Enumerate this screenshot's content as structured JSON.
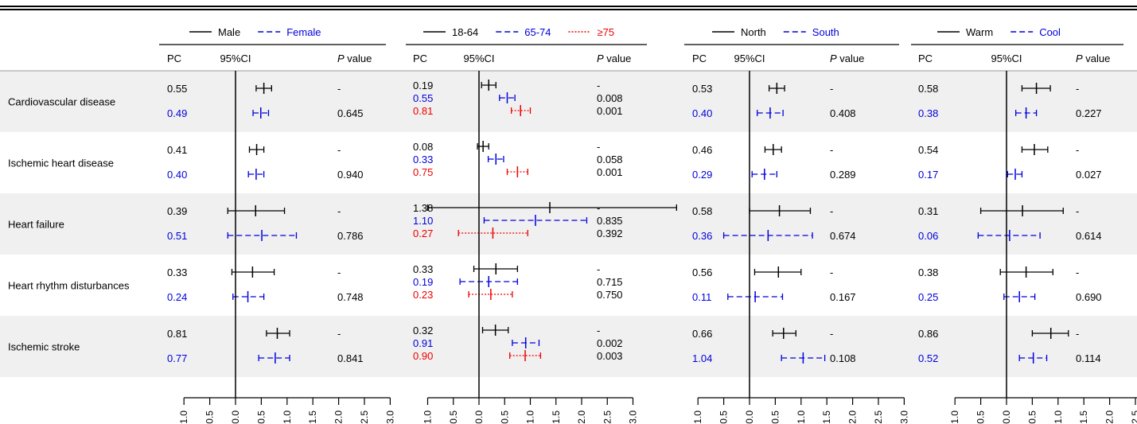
{
  "chart_data": {
    "type": "forest",
    "axis": {
      "ticks": [
        "-1.0",
        "-0.5",
        "0.0",
        "0.5",
        "1.0",
        "1.5",
        "2.0",
        "2.5",
        "3.0"
      ],
      "xlim": [
        -1.0,
        3.0
      ],
      "reference_line": 0
    },
    "columns": {
      "pc": "PC",
      "ci": "95%CI",
      "p_label": "P",
      "p_suffix": " value"
    },
    "diseases": [
      "Cardiovascular disease",
      "Ischemic heart disease",
      "Heart failure",
      "Heart rhythm disturbances",
      "Ischemic stroke"
    ],
    "panels": [
      {
        "legend": [
          {
            "name": "Male",
            "color": "#000000",
            "style": "solid"
          },
          {
            "name": "Female",
            "color": "#0000dd",
            "style": "dashed"
          }
        ],
        "rows": [
          [
            {
              "pc": "0.55",
              "lo": 0.4,
              "hi": 0.7,
              "p": "-"
            },
            {
              "pc": "0.49",
              "lo": 0.34,
              "hi": 0.64,
              "p": "0.645"
            }
          ],
          [
            {
              "pc": "0.41",
              "lo": 0.27,
              "hi": 0.55,
              "p": "-"
            },
            {
              "pc": "0.40",
              "lo": 0.25,
              "hi": 0.55,
              "p": "0.940"
            }
          ],
          [
            {
              "pc": "0.39",
              "lo": -0.15,
              "hi": 0.95,
              "p": "-"
            },
            {
              "pc": "0.51",
              "lo": -0.15,
              "hi": 1.18,
              "p": "0.786"
            }
          ],
          [
            {
              "pc": "0.33",
              "lo": -0.07,
              "hi": 0.75,
              "p": "-"
            },
            {
              "pc": "0.24",
              "lo": -0.05,
              "hi": 0.55,
              "p": "0.748"
            }
          ],
          [
            {
              "pc": "0.81",
              "lo": 0.6,
              "hi": 1.05,
              "p": "-"
            },
            {
              "pc": "0.77",
              "lo": 0.45,
              "hi": 1.05,
              "p": "0.841"
            }
          ]
        ]
      },
      {
        "legend": [
          {
            "name": "18-64",
            "color": "#000000",
            "style": "solid"
          },
          {
            "name": "65-74",
            "color": "#0000dd",
            "style": "dashed"
          },
          {
            "name": "≥75",
            "color": "#ee0000",
            "style": "dotted"
          }
        ],
        "rows": [
          [
            {
              "pc": "0.19",
              "lo": 0.05,
              "hi": 0.33,
              "p": "-"
            },
            {
              "pc": "0.55",
              "lo": 0.4,
              "hi": 0.7,
              "p": "0.008"
            },
            {
              "pc": "0.81",
              "lo": 0.63,
              "hi": 1.0,
              "p": "0.001"
            }
          ],
          [
            {
              "pc": "0.08",
              "lo": -0.03,
              "hi": 0.19,
              "p": "-"
            },
            {
              "pc": "0.33",
              "lo": 0.18,
              "hi": 0.48,
              "p": "0.058"
            },
            {
              "pc": "0.75",
              "lo": 0.55,
              "hi": 0.95,
              "p": "0.001"
            }
          ],
          [
            {
              "pc": "1.38",
              "lo": -1.0,
              "hi": 3.85,
              "p": "-"
            },
            {
              "pc": "1.10",
              "lo": 0.1,
              "hi": 2.1,
              "p": "0.835"
            },
            {
              "pc": "0.27",
              "lo": -0.4,
              "hi": 0.95,
              "p": "0.392"
            }
          ],
          [
            {
              "pc": "0.33",
              "lo": -0.1,
              "hi": 0.75,
              "p": "-"
            },
            {
              "pc": "0.19",
              "lo": -0.37,
              "hi": 0.75,
              "p": "0.715"
            },
            {
              "pc": "0.23",
              "lo": -0.2,
              "hi": 0.65,
              "p": "0.750"
            }
          ],
          [
            {
              "pc": "0.32",
              "lo": 0.07,
              "hi": 0.57,
              "p": "-"
            },
            {
              "pc": "0.91",
              "lo": 0.65,
              "hi": 1.17,
              "p": "0.002"
            },
            {
              "pc": "0.90",
              "lo": 0.6,
              "hi": 1.2,
              "p": "0.003"
            }
          ]
        ]
      },
      {
        "legend": [
          {
            "name": "North",
            "color": "#000000",
            "style": "solid"
          },
          {
            "name": "South",
            "color": "#0000dd",
            "style": "dashed"
          }
        ],
        "rows": [
          [
            {
              "pc": "0.53",
              "lo": 0.38,
              "hi": 0.68,
              "p": "-"
            },
            {
              "pc": "0.40",
              "lo": 0.15,
              "hi": 0.65,
              "p": "0.408"
            }
          ],
          [
            {
              "pc": "0.46",
              "lo": 0.3,
              "hi": 0.62,
              "p": "-"
            },
            {
              "pc": "0.29",
              "lo": 0.05,
              "hi": 0.53,
              "p": "0.289"
            }
          ],
          [
            {
              "pc": "0.58",
              "lo": 0.0,
              "hi": 1.18,
              "p": "-"
            },
            {
              "pc": "0.36",
              "lo": -0.5,
              "hi": 1.22,
              "p": "0.674"
            }
          ],
          [
            {
              "pc": "0.56",
              "lo": 0.1,
              "hi": 1.0,
              "p": "-"
            },
            {
              "pc": "0.11",
              "lo": -0.42,
              "hi": 0.64,
              "p": "0.167"
            }
          ],
          [
            {
              "pc": "0.66",
              "lo": 0.45,
              "hi": 0.9,
              "p": "-"
            },
            {
              "pc": "1.04",
              "lo": 0.62,
              "hi": 1.46,
              "p": "0.108"
            }
          ]
        ]
      },
      {
        "legend": [
          {
            "name": "Warm",
            "color": "#000000",
            "style": "solid"
          },
          {
            "name": "Cool",
            "color": "#0000dd",
            "style": "dashed"
          }
        ],
        "rows": [
          [
            {
              "pc": "0.58",
              "lo": 0.3,
              "hi": 0.85,
              "p": "-"
            },
            {
              "pc": "0.38",
              "lo": 0.18,
              "hi": 0.58,
              "p": "0.227"
            }
          ],
          [
            {
              "pc": "0.54",
              "lo": 0.3,
              "hi": 0.8,
              "p": "-"
            },
            {
              "pc": "0.17",
              "lo": 0.02,
              "hi": 0.3,
              "p": "0.027"
            }
          ],
          [
            {
              "pc": "0.31",
              "lo": -0.5,
              "hi": 1.1,
              "p": "-"
            },
            {
              "pc": "0.06",
              "lo": -0.55,
              "hi": 0.65,
              "p": "0.614"
            }
          ],
          [
            {
              "pc": "0.38",
              "lo": -0.12,
              "hi": 0.9,
              "p": "-"
            },
            {
              "pc": "0.25",
              "lo": -0.05,
              "hi": 0.55,
              "p": "0.690"
            }
          ],
          [
            {
              "pc": "0.86",
              "lo": 0.5,
              "hi": 1.2,
              "p": "-"
            },
            {
              "pc": "0.52",
              "lo": 0.25,
              "hi": 0.78,
              "p": "0.114"
            }
          ]
        ]
      }
    ]
  }
}
